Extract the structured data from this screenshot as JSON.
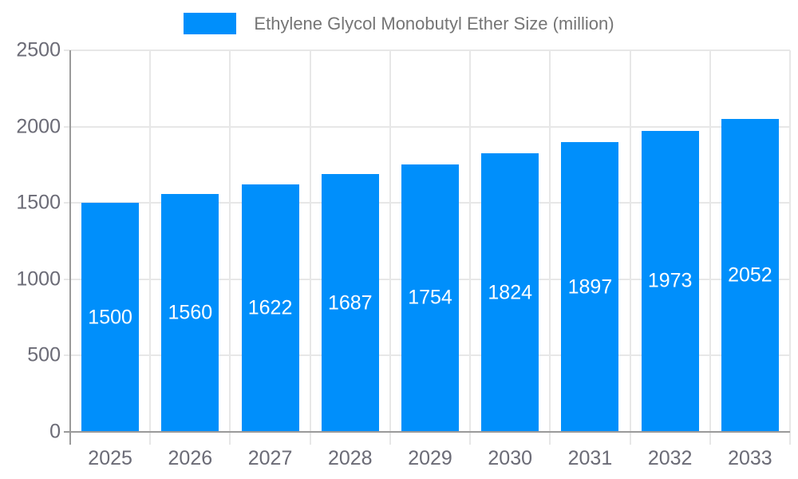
{
  "chart_data": {
    "type": "bar",
    "title": "Ethylene Glycol Monobutyl Ether Size (million)",
    "categories": [
      "2025",
      "2026",
      "2027",
      "2028",
      "2029",
      "2030",
      "2031",
      "2032",
      "2033"
    ],
    "values": [
      1500,
      1560,
      1622,
      1687,
      1754,
      1824,
      1897,
      1973,
      2052
    ],
    "series_name": "Ethylene Glycol Monobutyl Ether Size (million)",
    "xlabel": "",
    "ylabel": "",
    "ylim": [
      0,
      2500
    ],
    "y_ticks": [
      0,
      500,
      1000,
      1500,
      2000,
      2500
    ],
    "grid": true,
    "legend_position": "top",
    "data_labels": "inside-center-white",
    "colors": {
      "bar": "#008FFB",
      "grid": "#e7e7e7",
      "axis": "#9a9a9a",
      "axis_label": "#6b6b76",
      "legend_text": "#757575",
      "value_label": "#ffffff",
      "background": "#ffffff"
    }
  }
}
